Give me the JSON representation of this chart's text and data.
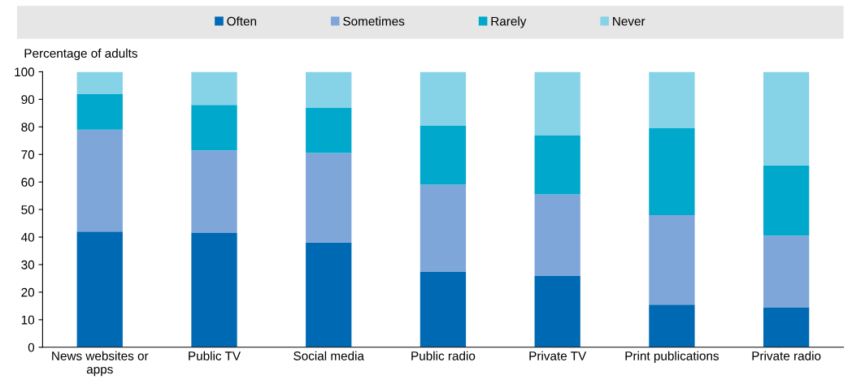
{
  "chart_data": {
    "type": "bar",
    "stacked": true,
    "ylabel": "Percentage of adults",
    "categories": [
      "News websites or\napps",
      "Public TV",
      "Social media",
      "Public radio",
      "Private TV",
      "Print publications",
      "Private radio"
    ],
    "series": [
      {
        "name": "Often",
        "color": "#0069b4",
        "values": [
          42,
          41.5,
          38,
          27.5,
          26,
          15.5,
          14.5
        ]
      },
      {
        "name": "Sometimes",
        "color": "#7fa6d9",
        "values": [
          37,
          30,
          32.5,
          31.5,
          29.5,
          32.5,
          26
        ]
      },
      {
        "name": "Rarely",
        "color": "#00a8cc",
        "values": [
          13,
          16.5,
          16.5,
          21.5,
          21.5,
          31.5,
          25.5
        ]
      },
      {
        "name": "Never",
        "color": "#86d2e6",
        "values": [
          8,
          12,
          13,
          19.5,
          23,
          20.5,
          34
        ]
      }
    ],
    "ylim": [
      0,
      100
    ],
    "yticks": [
      0,
      10,
      20,
      30,
      40,
      50,
      60,
      70,
      80,
      90,
      100
    ],
    "grid": false,
    "legend": "top"
  }
}
